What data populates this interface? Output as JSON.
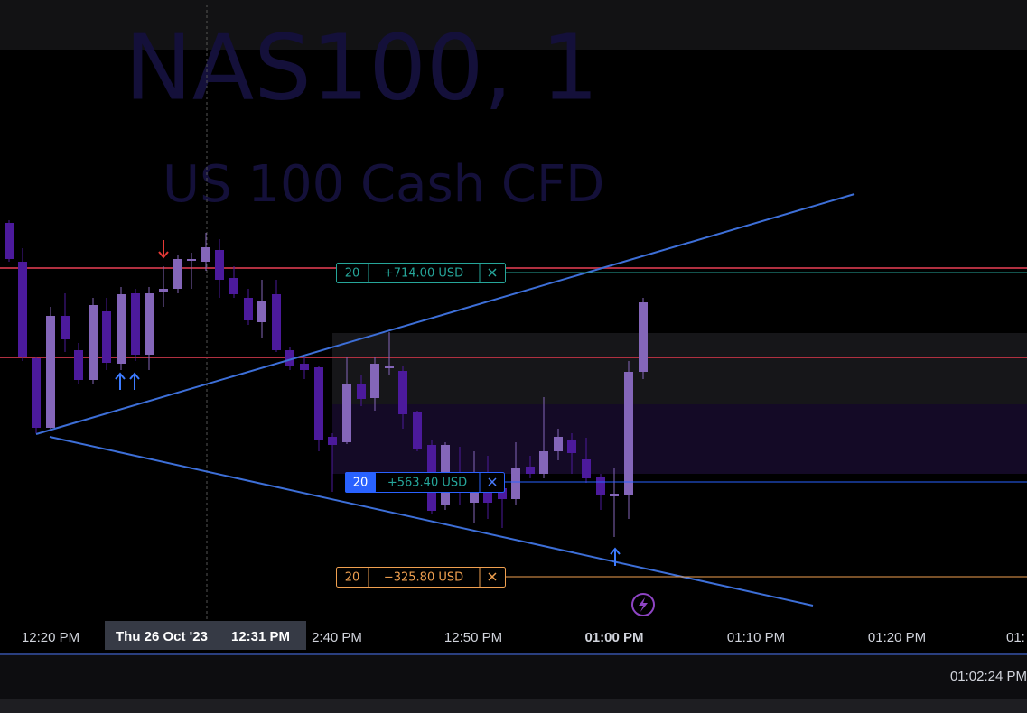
{
  "watermark": {
    "symbol": "NAS100, 1",
    "description": "US 100 Cash CFD"
  },
  "orders": [
    {
      "quantity": "20",
      "pnl": "+714.00 USD"
    },
    {
      "quantity": "20",
      "pnl": "+563.40 USD"
    },
    {
      "quantity": "20",
      "pnl": "−325.80 USD"
    }
  ],
  "time_axis": {
    "labels": [
      "12:20 PM",
      "2:40 PM",
      "12:50 PM",
      "01:00 PM",
      "01:10 PM",
      "01:20 PM",
      "01:"
    ],
    "crosshair": {
      "date": "Thu 26 Oct '23",
      "time": "12:31 PM"
    }
  },
  "status_bar": {
    "clock": "01:02:24 PM"
  }
}
